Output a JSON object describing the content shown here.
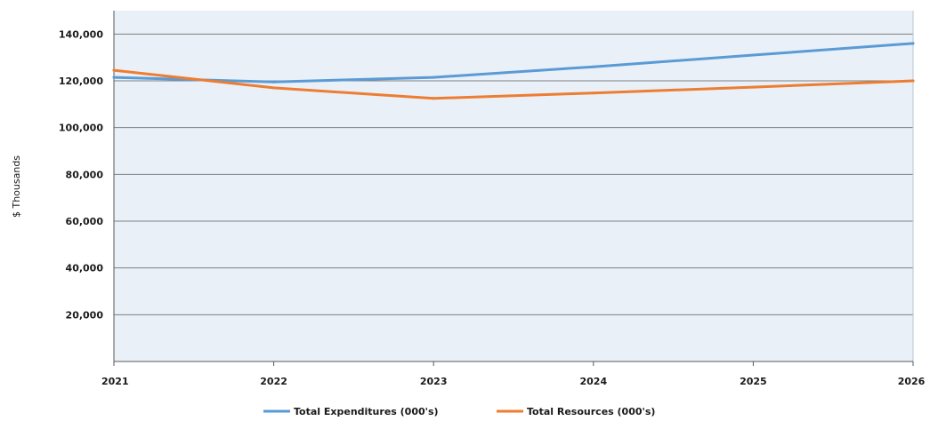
{
  "chart_data": {
    "type": "line",
    "title": "",
    "xlabel": "",
    "ylabel": "$ Thousands",
    "x": [
      "2021",
      "2022",
      "2023",
      "2024",
      "2025",
      "2026"
    ],
    "ylim": [
      0,
      150000
    ],
    "yticks": [
      "20,000",
      "40,000",
      "60,000",
      "80,000",
      "100,000",
      "120,000",
      "140,000"
    ],
    "ytick_values": [
      20000,
      40000,
      60000,
      80000,
      100000,
      120000,
      140000
    ],
    "grid": true,
    "legend_position": "bottom",
    "series": [
      {
        "name": "Total Expenditures (000's)",
        "color": "#5b9bd5",
        "values": [
          121500,
          119500,
          121500,
          126000,
          131000,
          136000
        ]
      },
      {
        "name": "Total Resources (000's)",
        "color": "#ed7d31",
        "values": [
          124500,
          117000,
          112500,
          114800,
          117300,
          120000
        ]
      }
    ]
  },
  "colors": {
    "plot_background": "#e9f0f8",
    "gridline": "#7f7f7f",
    "axis": "#595959"
  }
}
